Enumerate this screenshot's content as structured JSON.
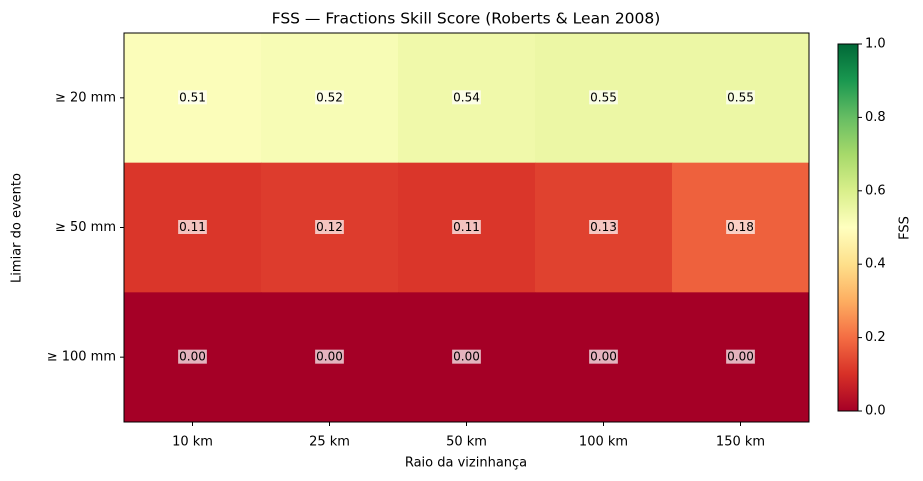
{
  "chart_data": {
    "type": "heatmap",
    "title": "FSS — Fractions Skill Score (Roberts & Lean 2008)",
    "x_label": "Raio da vizinhança",
    "y_label": "Limiar do evento",
    "columns": [
      "10 km",
      "25 km",
      "50 km",
      "100 km",
      "150 km"
    ],
    "rows": [
      "≥ 20 mm",
      "≥ 50 mm",
      "≥ 100 mm"
    ],
    "values": [
      [
        0.51,
        0.52,
        0.54,
        0.55,
        0.55
      ],
      [
        0.11,
        0.12,
        0.11,
        0.13,
        0.18
      ],
      [
        0,
        0,
        0,
        0,
        0
      ]
    ],
    "value_labels": [
      [
        "0.51",
        "0.52",
        "0.54",
        "0.55",
        "0.55"
      ],
      [
        "0.11",
        "0.12",
        "0.11",
        "0.13",
        "0.18"
      ],
      [
        "0.00",
        "0.00",
        "0.00",
        "0.00",
        "0.00"
      ]
    ],
    "colormap": "RdYlGn",
    "colorbar_label": "FSS",
    "zlim": [
      0,
      1
    ],
    "zticks": [
      {
        "value": 0,
        "label": "0.0"
      },
      0.2,
      0.4,
      0.6,
      0.8,
      {
        "value": 1,
        "label": "1.0"
      }
    ]
  }
}
